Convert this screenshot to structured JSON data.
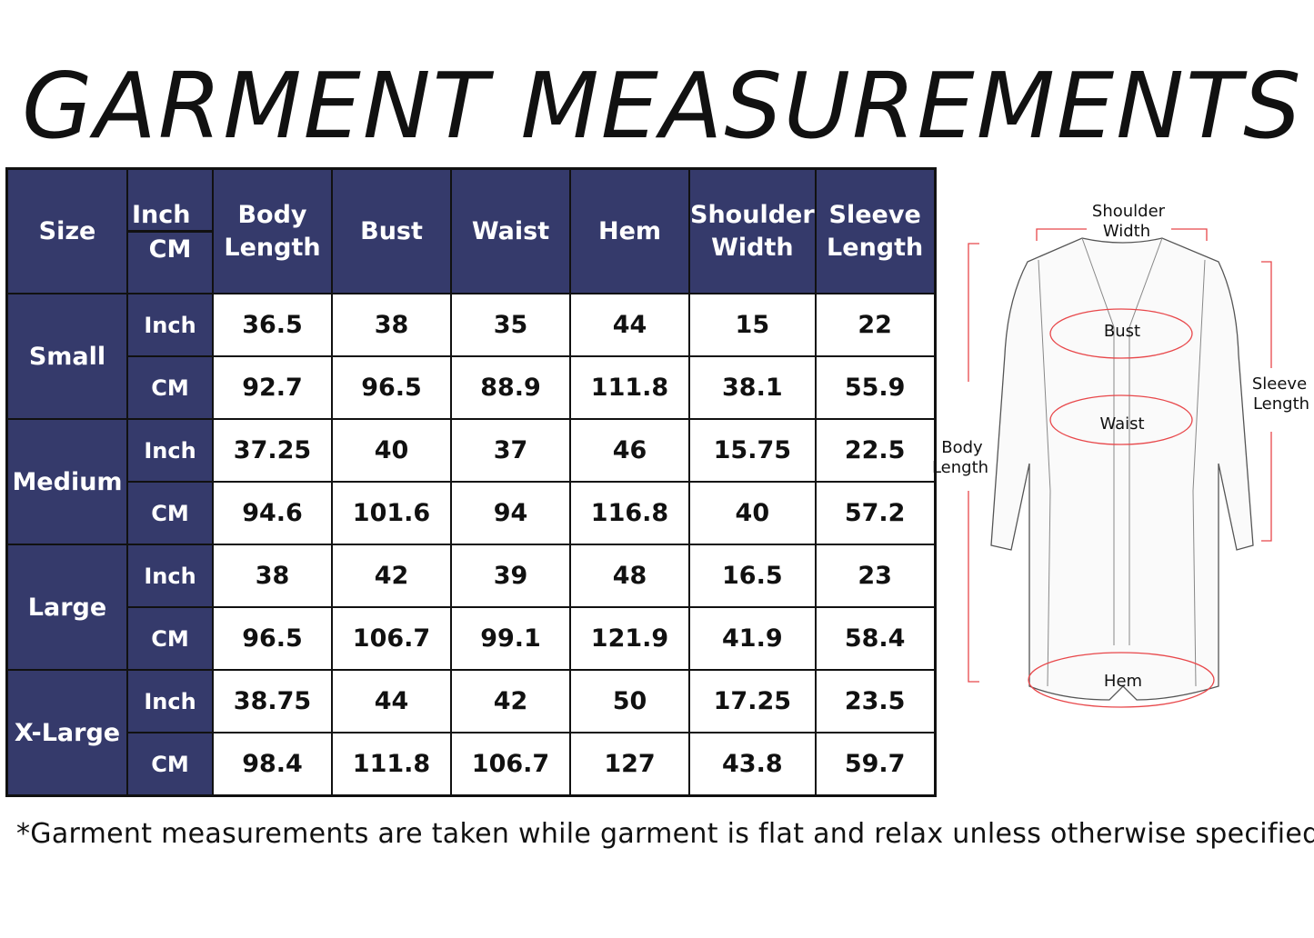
{
  "title": "GARMENT MEASUREMENTS",
  "header": {
    "size": "Size",
    "unit_top": "Inch",
    "unit_bottom": "CM",
    "columns": [
      [
        "Body",
        "Length"
      ],
      [
        "Bust",
        ""
      ],
      [
        "Waist",
        ""
      ],
      [
        "Hem",
        ""
      ],
      [
        "Shoulder",
        "Width"
      ],
      [
        "Sleeve",
        "Length"
      ]
    ]
  },
  "rows": [
    {
      "size": "Small",
      "inch": [
        "36.5",
        "38",
        "35",
        "44",
        "15",
        "22"
      ],
      "cm": [
        "92.7",
        "96.5",
        "88.9",
        "111.8",
        "38.1",
        "55.9"
      ]
    },
    {
      "size": "Medium",
      "inch": [
        "37.25",
        "40",
        "37",
        "46",
        "15.75",
        "22.5"
      ],
      "cm": [
        "94.6",
        "101.6",
        "94",
        "116.8",
        "40",
        "57.2"
      ]
    },
    {
      "size": "Large",
      "inch": [
        "38",
        "42",
        "39",
        "48",
        "16.5",
        "23"
      ],
      "cm": [
        "96.5",
        "106.7",
        "99.1",
        "121.9",
        "41.9",
        "58.4"
      ]
    },
    {
      "size": "X-Large",
      "inch": [
        "38.75",
        "44",
        "42",
        "50",
        "17.25",
        "23.5"
      ],
      "cm": [
        "98.4",
        "111.8",
        "106.7",
        "127",
        "43.8",
        "59.7"
      ]
    }
  ],
  "unit_labels": {
    "inch": "Inch",
    "cm": "CM"
  },
  "diagram": {
    "shoulder1": "Shoulder",
    "shoulder2": "Width",
    "bust": "Bust",
    "waist": "Waist",
    "hem": "Hem",
    "body1": "Body",
    "body2": "Length",
    "sleeve1": "Sleeve",
    "sleeve2": "Length"
  },
  "note": "*Garment measurements are taken while garment is flat and relax unless otherwise specified",
  "colors": {
    "header_bg": "#353a6b",
    "marker": "#e8474a"
  }
}
